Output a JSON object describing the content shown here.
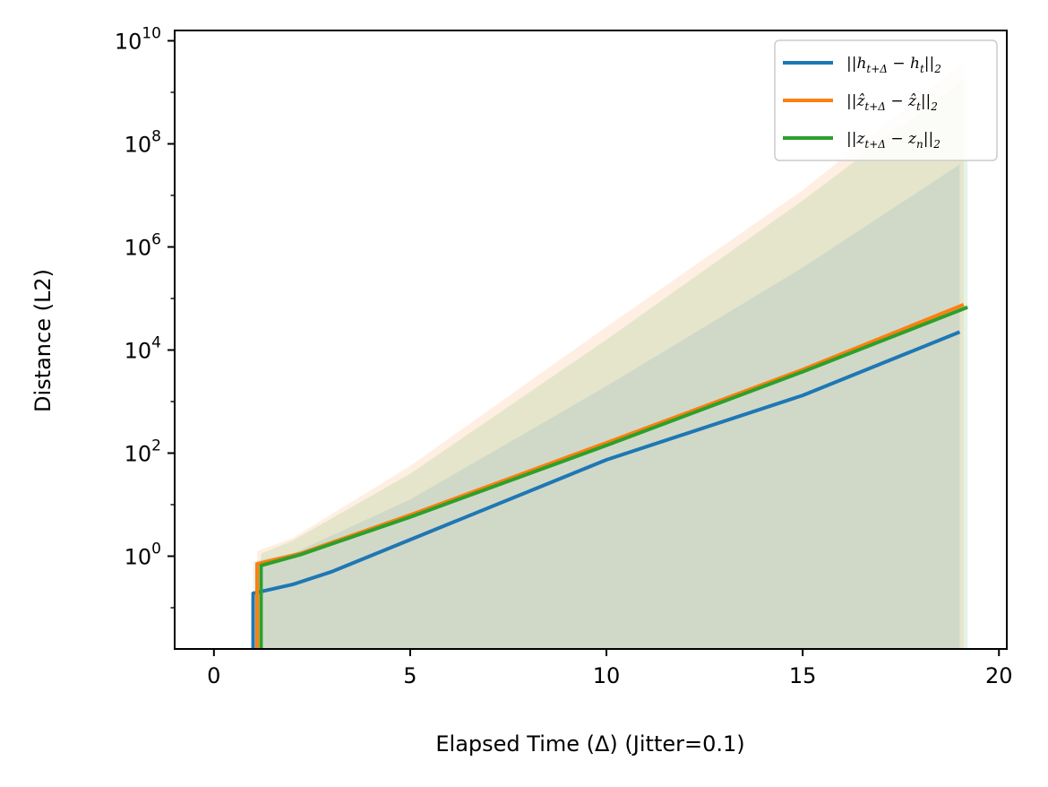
{
  "chart_data": {
    "type": "line",
    "title": "",
    "xlabel": "Elapsed Time (Δ)  (Jitter=0.1)",
    "ylabel": "Distance (L2)",
    "xlim": [
      -1,
      20.2
    ],
    "ylog": true,
    "ylim_log10": [
      -1.8,
      10.2
    ],
    "xticks": [
      0,
      5,
      10,
      15,
      20
    ],
    "xtick_labels": [
      "0",
      "5",
      "10",
      "15",
      "20"
    ],
    "yticks_log10": [
      0,
      2,
      4,
      6,
      8,
      10
    ],
    "ytick_labels": [
      {
        "base": "10",
        "exp": "0"
      },
      {
        "base": "10",
        "exp": "2"
      },
      {
        "base": "10",
        "exp": "4"
      },
      {
        "base": "10",
        "exp": "6"
      },
      {
        "base": "10",
        "exp": "8"
      },
      {
        "base": "10",
        "exp": "10"
      }
    ],
    "grid": false,
    "legend_position": "upper-right",
    "series": [
      {
        "name": "||h_{t+Δ} − h_t||_2",
        "legend_label": "||h t+Δ − h t||2",
        "color": "#1f77b4",
        "x": [
          1.0,
          1.0,
          2.0,
          3.0,
          5.0,
          10.0,
          15.0,
          19.0
        ],
        "log10_y": [
          -1.8,
          -0.72,
          -0.55,
          -0.3,
          0.32,
          1.87,
          3.12,
          4.35
        ]
      },
      {
        "name": "||ẑ_{t+Δ} − ẑ_t||_2",
        "legend_label": "||ẑ t+Δ − ẑ t||2",
        "color": "#ff7f0e",
        "x": [
          1.1,
          1.1,
          2.2,
          5.0,
          10.0,
          15.0,
          19.1
        ],
        "log10_y": [
          -1.8,
          -0.15,
          0.05,
          0.8,
          2.2,
          3.62,
          4.88
        ]
      },
      {
        "name": "||z_{t+Δ} − z_n||_2",
        "legend_label": "||z t+Δ − z n||2",
        "color": "#2ca02c",
        "x": [
          1.2,
          1.2,
          2.2,
          5.0,
          10.0,
          15.0,
          19.2
        ],
        "log10_y": [
          -1.8,
          -0.18,
          0.03,
          0.76,
          2.15,
          3.58,
          4.83
        ]
      }
    ],
    "bands": [
      {
        "series": "||ẑ_{t+Δ} − ẑ_t||_2",
        "color": "#ff7f0e",
        "opacity": 0.12,
        "x": [
          1.1,
          2.0,
          5.0,
          10.0,
          15.0,
          19.1
        ],
        "upper_log10": [
          0.1,
          0.35,
          1.75,
          4.45,
          7.1,
          9.6
        ],
        "lower_log10": [
          -1.8,
          -1.8,
          -1.8,
          -1.8,
          -1.8,
          -1.8
        ]
      },
      {
        "series": "||z_{t+Δ} − z_n||_2",
        "color": "#2ca02c",
        "opacity": 0.12,
        "x": [
          1.2,
          2.0,
          5.0,
          10.0,
          15.0,
          19.2
        ],
        "upper_log10": [
          0.05,
          0.3,
          1.6,
          4.2,
          6.9,
          9.3
        ],
        "lower_log10": [
          -1.8,
          -1.8,
          -1.8,
          -1.8,
          -1.8,
          -1.8
        ]
      },
      {
        "series": "||h_{t+Δ} − h_t||_2",
        "color": "#1f77b4",
        "opacity": 0.1,
        "x": [
          1.0,
          2.0,
          5.0,
          10.0,
          15.0,
          19.0
        ],
        "upper_log10": [
          -0.1,
          0.05,
          1.1,
          3.3,
          5.6,
          7.6
        ],
        "lower_log10": [
          -1.8,
          -1.8,
          -1.8,
          -1.8,
          -1.8,
          -1.8
        ]
      }
    ]
  }
}
